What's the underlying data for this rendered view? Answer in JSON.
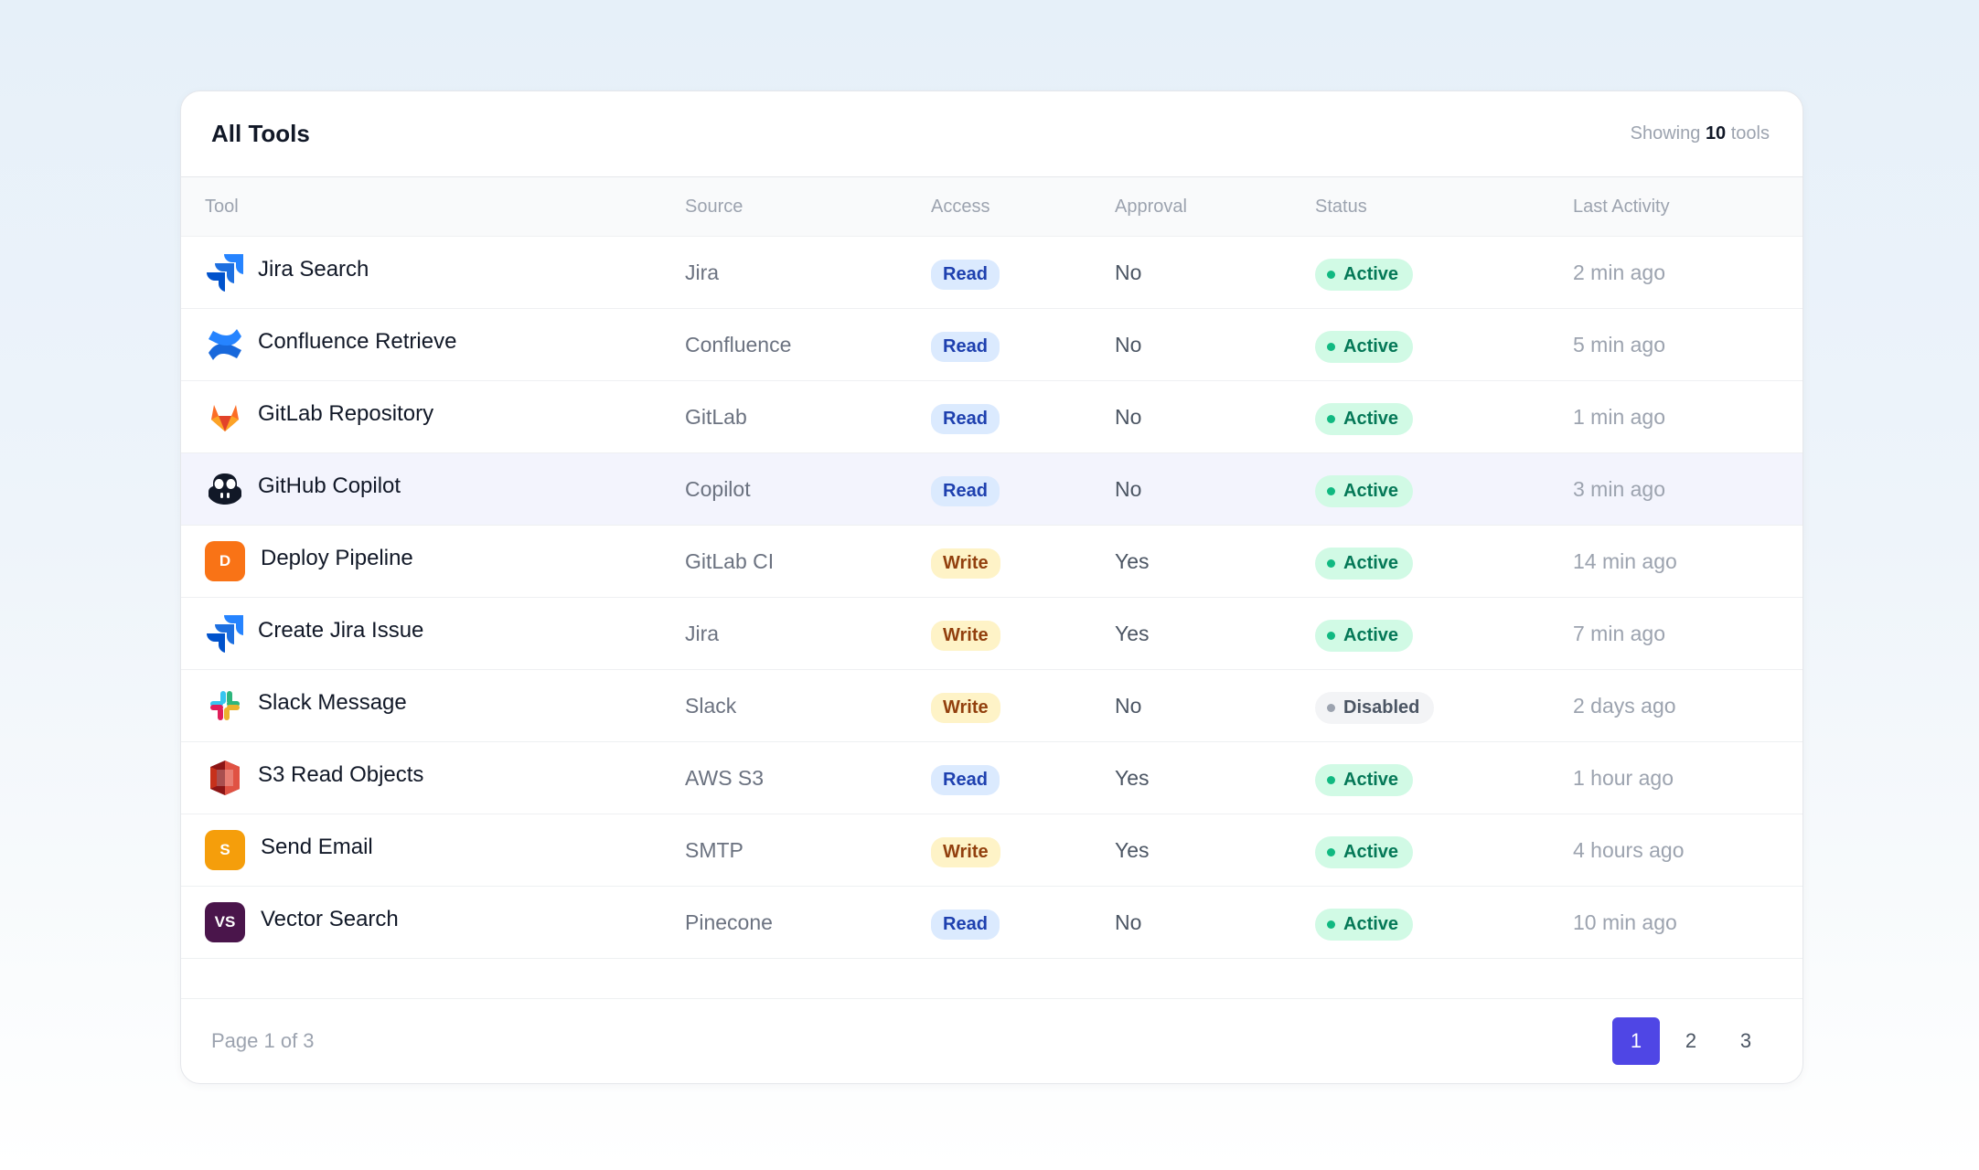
{
  "header": {
    "title": "All Tools",
    "showing_prefix": "Showing",
    "showing_count": "10",
    "showing_suffix": "tools"
  },
  "columns": [
    "Tool",
    "Source",
    "Access",
    "Approval",
    "Status",
    "Last Activity"
  ],
  "rows": [
    {
      "name": "Jira Search",
      "icon": "jira-icon",
      "source": "Jira",
      "access": "Read",
      "approval": "No",
      "status": "Active",
      "last": "2 min ago"
    },
    {
      "name": "Confluence Retrieve",
      "icon": "confluence-icon",
      "source": "Confluence",
      "access": "Read",
      "approval": "No",
      "status": "Active",
      "last": "5 min ago"
    },
    {
      "name": "GitLab Repository",
      "icon": "gitlab-icon",
      "source": "GitLab",
      "access": "Read",
      "approval": "No",
      "status": "Active",
      "last": "1 min ago"
    },
    {
      "name": "GitHub Copilot",
      "icon": "copilot-icon",
      "source": "Copilot",
      "access": "Read",
      "approval": "No",
      "status": "Active",
      "last": "3 min ago"
    },
    {
      "name": "Deploy Pipeline",
      "icon": "letter-d-icon",
      "letter": "D",
      "source": "GitLab CI",
      "access": "Write",
      "approval": "Yes",
      "status": "Active",
      "last": "14 min ago"
    },
    {
      "name": "Create Jira Issue",
      "icon": "jira-icon",
      "source": "Jira",
      "access": "Write",
      "approval": "Yes",
      "status": "Active",
      "last": "7 min ago"
    },
    {
      "name": "Slack Message",
      "icon": "slack-icon",
      "source": "Slack",
      "access": "Write",
      "approval": "No",
      "status": "Disabled",
      "last": "2 days ago"
    },
    {
      "name": "S3 Read Objects",
      "icon": "aws-s3-icon",
      "source": "AWS S3",
      "access": "Read",
      "approval": "Yes",
      "status": "Active",
      "last": "1 hour ago"
    },
    {
      "name": "Send Email",
      "icon": "letter-s-icon",
      "letter": "S",
      "source": "SMTP",
      "access": "Write",
      "approval": "Yes",
      "status": "Active",
      "last": "4 hours ago"
    },
    {
      "name": "Vector Search",
      "icon": "letter-vs-icon",
      "letter": "VS",
      "source": "Pinecone",
      "access": "Read",
      "approval": "No",
      "status": "Active",
      "last": "10 min ago"
    }
  ],
  "footer": {
    "page_info": "Page 1 of 3",
    "pages": [
      "1",
      "2",
      "3"
    ],
    "current_page": "1"
  },
  "colors": {
    "accent": "#4f46e5",
    "active_bg": "#d1fae5",
    "active_text": "#047857",
    "read_bg": "#dbeafe",
    "write_bg": "#fef3c7",
    "deploy_icon": "#f97316",
    "email_icon": "#f59e0b",
    "vector_icon": "#4a154b"
  }
}
